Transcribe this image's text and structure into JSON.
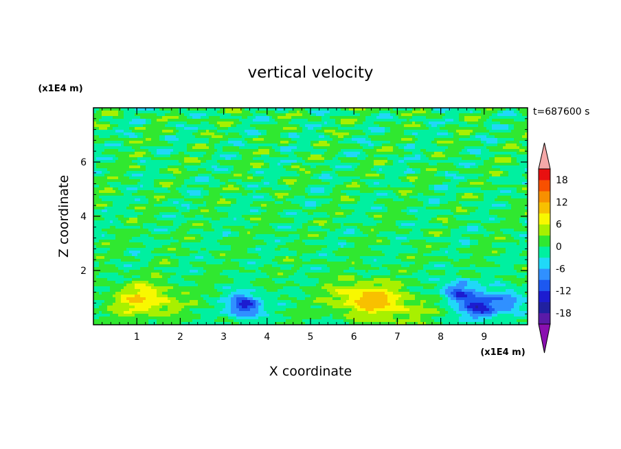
{
  "chart_data": {
    "type": "heatmap",
    "title": "vertical velocity",
    "xlabel": "X coordinate",
    "ylabel": "Z coordinate",
    "x_unit": "(x1E4 m)",
    "y_unit": "(x1E4 m)",
    "time_label": "t=687600 s",
    "xlim": [
      0,
      10
    ],
    "ylim": [
      0,
      8
    ],
    "x_ticks": [
      1,
      2,
      3,
      4,
      5,
      6,
      7,
      8,
      9
    ],
    "y_ticks": [
      2,
      4,
      6
    ],
    "x_tick_labels": [
      "1",
      "2",
      "3",
      "4",
      "5",
      "6",
      "7",
      "8",
      "9"
    ],
    "y_tick_labels": [
      "2",
      "4",
      "6"
    ],
    "colorbar": {
      "levels": [
        -21,
        -18,
        -15,
        -12,
        -9,
        -6,
        -3,
        0,
        3,
        6,
        9,
        12,
        15,
        18,
        21
      ],
      "tick_values": [
        -18,
        -12,
        -6,
        0,
        6,
        12,
        18
      ],
      "tick_labels": [
        "-18",
        "-12",
        "-6",
        "0",
        "6",
        "12",
        "18"
      ],
      "colors": [
        "#5a1aa8",
        "#2020a0",
        "#1c1cd0",
        "#1c58f0",
        "#3090ff",
        "#20d8f8",
        "#00f0a0",
        "#30e830",
        "#a8f000",
        "#f8f800",
        "#f8c000",
        "#f89000",
        "#f85000",
        "#e81010"
      ],
      "under_color": "#8a10b0",
      "over_color": "#f4a8a8"
    },
    "features": [
      {
        "kind": "updraft",
        "x": 1.2,
        "z": 0.9,
        "peak": 9
      },
      {
        "kind": "downdraft",
        "x": 3.5,
        "z": 0.7,
        "peak": -14
      },
      {
        "kind": "updraft",
        "x": 6.2,
        "z": 1.0,
        "peak": 9
      },
      {
        "kind": "updraft",
        "x": 7.0,
        "z": 0.6,
        "peak": 5
      },
      {
        "kind": "downdraft",
        "x": 8.4,
        "z": 1.2,
        "peak": -11
      },
      {
        "kind": "downdraft",
        "x": 8.9,
        "z": 0.6,
        "peak": -13
      },
      {
        "kind": "downdraft",
        "x": 9.5,
        "z": 0.9,
        "peak": -9
      }
    ]
  }
}
